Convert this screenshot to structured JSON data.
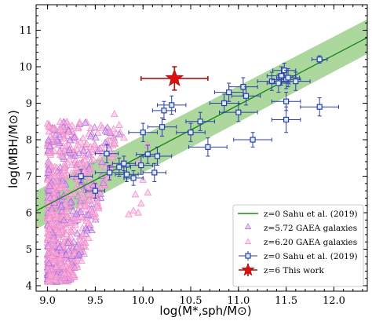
{
  "chart_data": {
    "type": "scatter",
    "xlabel": "log(M*,sph/M⊙)",
    "ylabel": "log(MBH/M⊙)",
    "xlim": [
      8.88,
      12.35
    ],
    "ylim": [
      3.85,
      11.7
    ],
    "xticks": [
      "9.0",
      "9.5",
      "10.0",
      "10.5",
      "11.0",
      "11.5",
      "12.0"
    ],
    "yticks": [
      "4",
      "5",
      "6",
      "7",
      "8",
      "9",
      "10",
      "11"
    ],
    "grid": false,
    "legend_position": "lower-right",
    "legend": [
      {
        "key": "relation",
        "label": "z=0 Sahu et al. (2019)"
      },
      {
        "key": "gaea572",
        "label": "z=5.72 GAEA galaxies"
      },
      {
        "key": "gaea620",
        "label": "z=6.20 GAEA galaxies"
      },
      {
        "key": "sahu",
        "label": "z=0 Sahu et al. (2019)"
      },
      {
        "key": "thiswork",
        "label": "z=6 This work"
      }
    ],
    "relation_line": {
      "x": [
        8.88,
        12.35
      ],
      "y": [
        6.05,
        10.8
      ]
    },
    "relation_band": {
      "x": [
        8.88,
        12.35
      ],
      "lower": [
        5.55,
        10.35
      ],
      "upper": [
        6.6,
        11.3
      ]
    },
    "sahu_points": [
      {
        "x": 9.35,
        "y": 7.0,
        "xerr": 0.12,
        "yerr": 0.18
      },
      {
        "x": 9.5,
        "y": 6.6,
        "xerr": 0.1,
        "yerr": 0.2
      },
      {
        "x": 9.62,
        "y": 7.62,
        "xerr": 0.12,
        "yerr": 0.25
      },
      {
        "x": 9.65,
        "y": 7.1,
        "xerr": 0.15,
        "yerr": 0.2
      },
      {
        "x": 9.75,
        "y": 7.25,
        "xerr": 0.12,
        "yerr": 0.25
      },
      {
        "x": 9.8,
        "y": 7.35,
        "xerr": 0.12,
        "yerr": 0.2
      },
      {
        "x": 9.83,
        "y": 7.05,
        "xerr": 0.12,
        "yerr": 0.2
      },
      {
        "x": 9.9,
        "y": 6.95,
        "xerr": 0.1,
        "yerr": 0.2
      },
      {
        "x": 9.98,
        "y": 7.3,
        "xerr": 0.12,
        "yerr": 0.25
      },
      {
        "x": 10.05,
        "y": 7.6,
        "xerr": 0.12,
        "yerr": 0.25
      },
      {
        "x": 10.0,
        "y": 8.2,
        "xerr": 0.15,
        "yerr": 0.25
      },
      {
        "x": 10.12,
        "y": 7.1,
        "xerr": 0.12,
        "yerr": 0.25
      },
      {
        "x": 10.15,
        "y": 7.55,
        "xerr": 0.15,
        "yerr": 0.25
      },
      {
        "x": 10.2,
        "y": 8.35,
        "xerr": 0.15,
        "yerr": 0.25
      },
      {
        "x": 10.22,
        "y": 8.8,
        "xerr": 0.12,
        "yerr": 0.25
      },
      {
        "x": 10.3,
        "y": 8.95,
        "xerr": 0.15,
        "yerr": 0.25
      },
      {
        "x": 10.5,
        "y": 8.2,
        "xerr": 0.15,
        "yerr": 0.25
      },
      {
        "x": 10.6,
        "y": 8.5,
        "xerr": 0.15,
        "yerr": 0.25
      },
      {
        "x": 10.68,
        "y": 7.8,
        "xerr": 0.2,
        "yerr": 0.25
      },
      {
        "x": 10.85,
        "y": 9.0,
        "xerr": 0.15,
        "yerr": 0.25
      },
      {
        "x": 10.9,
        "y": 9.3,
        "xerr": 0.15,
        "yerr": 0.25
      },
      {
        "x": 11.0,
        "y": 8.75,
        "xerr": 0.2,
        "yerr": 0.25
      },
      {
        "x": 11.05,
        "y": 9.45,
        "xerr": 0.15,
        "yerr": 0.25
      },
      {
        "x": 11.08,
        "y": 9.2,
        "xerr": 0.15,
        "yerr": 0.25
      },
      {
        "x": 11.15,
        "y": 8.0,
        "xerr": 0.2,
        "yerr": 0.2
      },
      {
        "x": 11.35,
        "y": 9.6,
        "xerr": 0.15,
        "yerr": 0.25
      },
      {
        "x": 11.42,
        "y": 9.55,
        "xerr": 0.12,
        "yerr": 0.25
      },
      {
        "x": 11.45,
        "y": 9.75,
        "xerr": 0.15,
        "yerr": 0.25
      },
      {
        "x": 11.48,
        "y": 9.9,
        "xerr": 0.12,
        "yerr": 0.2
      },
      {
        "x": 11.5,
        "y": 9.65,
        "xerr": 0.15,
        "yerr": 0.25
      },
      {
        "x": 11.52,
        "y": 9.7,
        "xerr": 0.12,
        "yerr": 0.25
      },
      {
        "x": 11.5,
        "y": 9.05,
        "xerr": 0.15,
        "yerr": 0.25
      },
      {
        "x": 11.5,
        "y": 8.55,
        "xerr": 0.15,
        "yerr": 0.35
      },
      {
        "x": 11.6,
        "y": 9.6,
        "xerr": 0.15,
        "yerr": 0.25
      },
      {
        "x": 11.85,
        "y": 10.2,
        "xerr": 0.08,
        "yerr": 0.1
      },
      {
        "x": 11.85,
        "y": 8.9,
        "xerr": 0.2,
        "yerr": 0.25
      }
    ],
    "this_work": {
      "x": 10.33,
      "y": 9.68,
      "xerr": 0.35,
      "yerr": 0.32
    },
    "gaea_region": {
      "x_range": [
        9.0,
        9.85
      ],
      "y_range": [
        4.1,
        8.5
      ]
    },
    "colors": {
      "band": "#90c97c",
      "line": "#1a8a1a",
      "gaea572": "#9b6cdc",
      "gaea620": "#f089c8",
      "sahu": "#2b3fa8",
      "star": "#e01010",
      "star_err": "#b01010"
    }
  }
}
